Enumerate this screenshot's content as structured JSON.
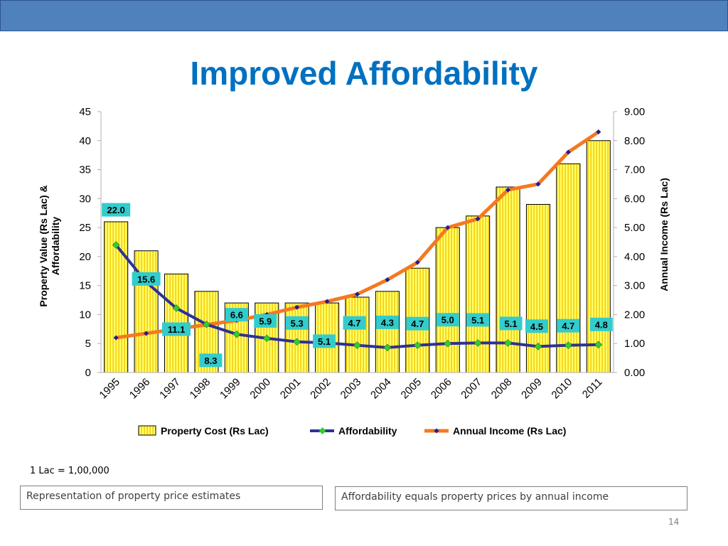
{
  "slide": {
    "title": "Improved Affordability",
    "note": "1 Lac = 1,00,000",
    "box_left": "Representation of property price estimates",
    "box_right": "Affordability equals property prices by annual income",
    "page_number": "14"
  },
  "colors": {
    "top_bar": "#4f81bd",
    "title": "#0070c0",
    "bar_fill": "#ffff66",
    "bar_stripe": "#f2c200",
    "affordability_line": "#2e3192",
    "affordability_marker": "#33cc33",
    "income_line": "#f47920",
    "income_marker": "#1f1f8f",
    "label_bg": "#33cccc"
  },
  "chart_data": {
    "type": "bar",
    "categories": [
      "1995",
      "1996",
      "1997",
      "1998",
      "1999",
      "2000",
      "2001",
      "2002",
      "2003",
      "2004",
      "2005",
      "2006",
      "2007",
      "2008",
      "2009",
      "2010",
      "2011"
    ],
    "y_left": {
      "label": "Property Value (Rs Lac) & Affordability",
      "range": [
        0,
        45
      ],
      "ticks": [
        "0",
        "5",
        "10",
        "15",
        "20",
        "25",
        "30",
        "35",
        "40",
        "45"
      ]
    },
    "y_right": {
      "label": "Annual Income (Rs Lac)",
      "range": [
        0,
        9
      ],
      "ticks": [
        "0.00",
        "1.00",
        "2.00",
        "3.00",
        "4.00",
        "5.00",
        "6.00",
        "7.00",
        "8.00",
        "9.00"
      ]
    },
    "legend_position": "bottom",
    "series": [
      {
        "name": "Property Cost (Rs Lac)",
        "kind": "bar",
        "axis": "left",
        "values": [
          26,
          21,
          17,
          14,
          12,
          12,
          12,
          12,
          13,
          14,
          18,
          25,
          27,
          32,
          29,
          36,
          40
        ]
      },
      {
        "name": "Affordability",
        "kind": "line",
        "axis": "left",
        "values": [
          22.0,
          15.6,
          11.1,
          8.3,
          6.6,
          5.9,
          5.3,
          5.1,
          4.7,
          4.3,
          4.7,
          5.0,
          5.1,
          5.1,
          4.5,
          4.7,
          4.8
        ],
        "labels": [
          "22.0",
          "15.6",
          "11.1",
          "8.3",
          "6.6",
          "5.9",
          "5.3",
          "5.1",
          "4.7",
          "4.3",
          "4.7",
          "5.0",
          "5.1",
          "5.1",
          "4.5",
          "4.7",
          "4.8"
        ]
      },
      {
        "name": "Annual Income (Rs Lac)",
        "kind": "line",
        "axis": "right",
        "values": [
          1.2,
          1.35,
          1.5,
          1.65,
          1.8,
          2.0,
          2.25,
          2.45,
          2.7,
          3.2,
          3.8,
          5.0,
          5.3,
          6.3,
          6.5,
          7.6,
          8.3
        ]
      }
    ]
  }
}
